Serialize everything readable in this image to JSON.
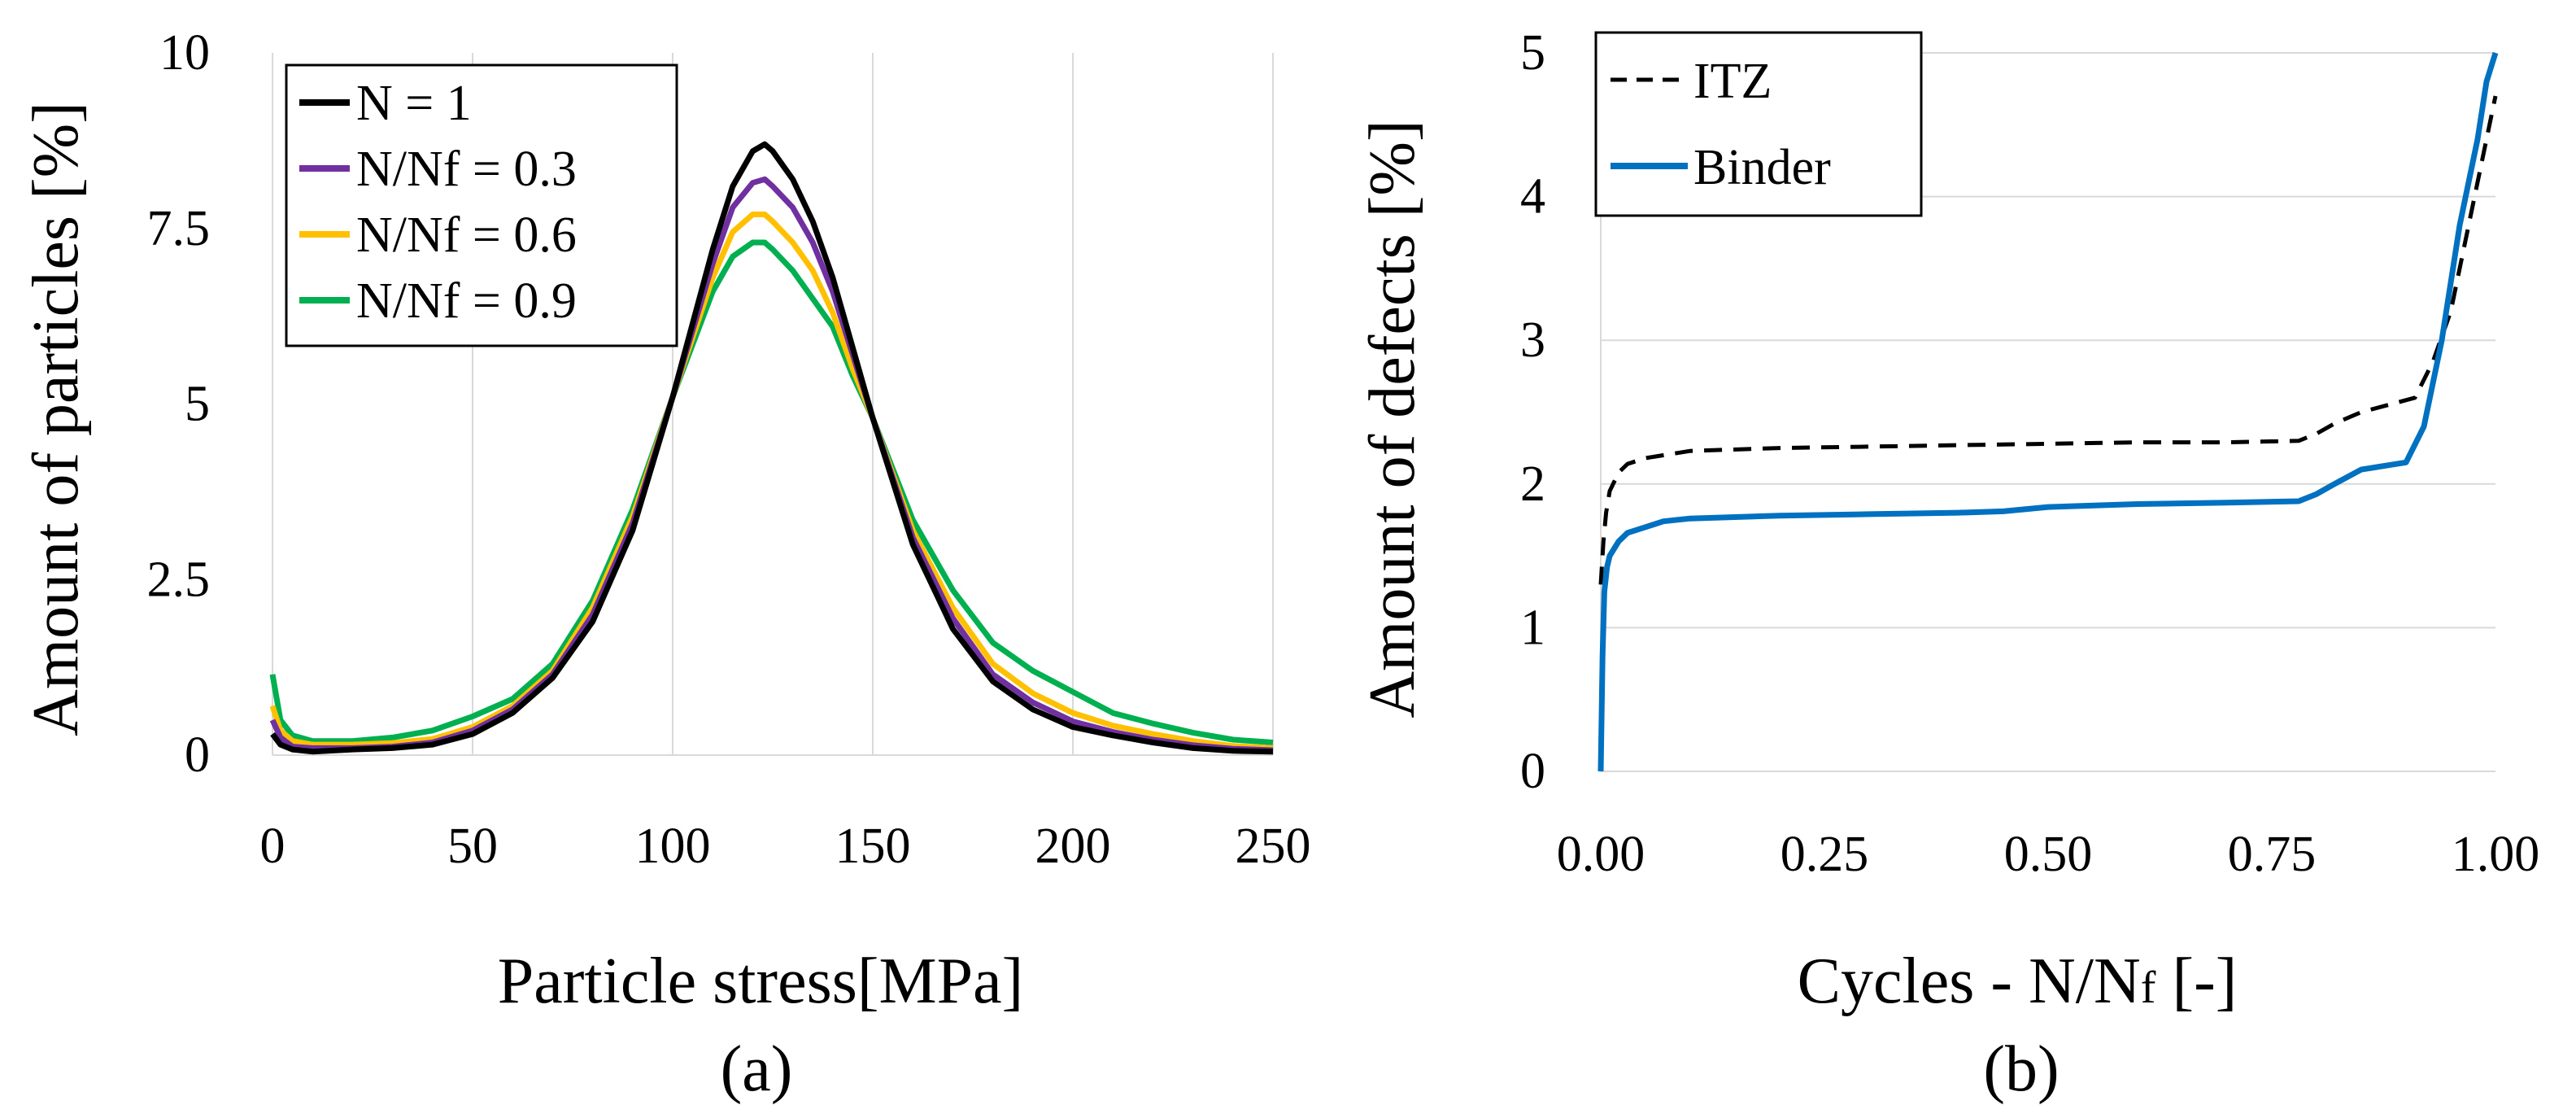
{
  "chart_data": [
    {
      "type": "line",
      "caption": "(a)",
      "xlabel": "Particle stress[MPa]",
      "ylabel": "Amount of particles [%]",
      "xlim": [
        0,
        250
      ],
      "ylim": [
        0,
        10
      ],
      "x_ticks": [
        "0",
        "50",
        "100",
        "150",
        "200",
        "250"
      ],
      "y_ticks": [
        "0",
        "2.5",
        "5",
        "7.5",
        "10"
      ],
      "grid": "vertical",
      "legend": "top-left, boxed",
      "series": [
        {
          "name": "N = 1",
          "color": "#000000",
          "x": [
            0,
            2,
            5,
            10,
            20,
            30,
            40,
            50,
            60,
            70,
            80,
            90,
            100,
            110,
            115,
            120,
            123,
            125,
            130,
            135,
            140,
            145,
            150,
            160,
            170,
            180,
            190,
            200,
            210,
            220,
            230,
            240,
            250
          ],
          "y": [
            0.3,
            0.15,
            0.08,
            0.05,
            0.08,
            0.1,
            0.15,
            0.3,
            0.6,
            1.1,
            1.9,
            3.2,
            5.1,
            7.2,
            8.1,
            8.6,
            8.7,
            8.6,
            8.2,
            7.6,
            6.8,
            5.8,
            4.8,
            3.0,
            1.8,
            1.05,
            0.65,
            0.4,
            0.28,
            0.18,
            0.1,
            0.06,
            0.05
          ]
        },
        {
          "name": "N/Nf = 0.3",
          "color": "#7030A0",
          "x": [
            0,
            2,
            5,
            10,
            20,
            30,
            40,
            50,
            60,
            70,
            80,
            90,
            100,
            110,
            115,
            120,
            123,
            125,
            130,
            135,
            140,
            145,
            150,
            160,
            170,
            180,
            190,
            200,
            210,
            220,
            230,
            240,
            250
          ],
          "y": [
            0.5,
            0.25,
            0.12,
            0.1,
            0.1,
            0.12,
            0.18,
            0.35,
            0.65,
            1.15,
            2.0,
            3.3,
            5.1,
            7.0,
            7.8,
            8.15,
            8.2,
            8.1,
            7.8,
            7.3,
            6.6,
            5.7,
            4.8,
            3.1,
            1.95,
            1.15,
            0.75,
            0.48,
            0.33,
            0.22,
            0.14,
            0.09,
            0.07
          ]
        },
        {
          "name": "N/Nf = 0.6",
          "color": "#FFC000",
          "x": [
            0,
            2,
            5,
            10,
            20,
            30,
            40,
            50,
            60,
            70,
            80,
            90,
            100,
            110,
            115,
            120,
            123,
            125,
            130,
            135,
            140,
            145,
            150,
            160,
            170,
            180,
            190,
            200,
            210,
            220,
            230,
            240,
            250
          ],
          "y": [
            0.7,
            0.35,
            0.2,
            0.15,
            0.15,
            0.17,
            0.23,
            0.4,
            0.7,
            1.2,
            2.1,
            3.4,
            5.1,
            6.8,
            7.45,
            7.7,
            7.7,
            7.6,
            7.3,
            6.9,
            6.3,
            5.5,
            4.8,
            3.2,
            2.1,
            1.3,
            0.88,
            0.6,
            0.42,
            0.3,
            0.2,
            0.13,
            0.1
          ]
        },
        {
          "name": "N/Nf = 0.9",
          "color": "#00B050",
          "x": [
            0,
            2,
            5,
            10,
            20,
            30,
            40,
            50,
            60,
            70,
            80,
            90,
            100,
            110,
            115,
            120,
            123,
            125,
            130,
            135,
            140,
            145,
            150,
            160,
            170,
            180,
            190,
            200,
            210,
            220,
            230,
            240,
            250
          ],
          "y": [
            1.15,
            0.5,
            0.28,
            0.2,
            0.2,
            0.25,
            0.35,
            0.55,
            0.8,
            1.3,
            2.2,
            3.5,
            5.1,
            6.6,
            7.1,
            7.3,
            7.3,
            7.2,
            6.9,
            6.5,
            6.1,
            5.4,
            4.8,
            3.35,
            2.35,
            1.6,
            1.2,
            0.9,
            0.6,
            0.45,
            0.32,
            0.22,
            0.18
          ]
        }
      ]
    },
    {
      "type": "line",
      "caption": "(b)",
      "xlabel_main": "Cycles - N/N",
      "xlabel_sub": "f",
      "xlabel_tail": " [-]",
      "ylabel": "Amount of defects [%]",
      "xlim": [
        0,
        1
      ],
      "ylim": [
        0,
        5
      ],
      "x_ticks": [
        "0.00",
        "0.25",
        "0.50",
        "0.75",
        "1.00"
      ],
      "y_ticks": [
        "0",
        "1",
        "2",
        "3",
        "4",
        "5"
      ],
      "grid": "horizontal",
      "legend": "top-left, boxed",
      "series": [
        {
          "name": "ITZ",
          "color": "#000000",
          "dash": "dashed",
          "x": [
            0,
            0.003,
            0.006,
            0.01,
            0.02,
            0.03,
            0.05,
            0.08,
            0.1,
            0.2,
            0.3,
            0.4,
            0.5,
            0.6,
            0.7,
            0.78,
            0.8,
            0.82,
            0.85,
            0.88,
            0.91,
            0.93,
            0.95,
            0.97,
            0.99,
            1.0
          ],
          "y": [
            1.3,
            1.6,
            1.8,
            1.95,
            2.08,
            2.14,
            2.18,
            2.21,
            2.23,
            2.25,
            2.26,
            2.27,
            2.28,
            2.29,
            2.29,
            2.3,
            2.35,
            2.42,
            2.5,
            2.55,
            2.6,
            2.85,
            3.2,
            3.8,
            4.4,
            4.7
          ]
        },
        {
          "name": "Binder",
          "color": "#0070C0",
          "dash": "solid",
          "x": [
            0,
            0.002,
            0.004,
            0.007,
            0.01,
            0.02,
            0.03,
            0.05,
            0.07,
            0.1,
            0.2,
            0.3,
            0.4,
            0.45,
            0.5,
            0.6,
            0.7,
            0.78,
            0.8,
            0.82,
            0.85,
            0.88,
            0.9,
            0.92,
            0.94,
            0.96,
            0.98,
            0.99,
            1.0
          ],
          "y": [
            0,
            0.8,
            1.25,
            1.42,
            1.5,
            1.6,
            1.66,
            1.7,
            1.74,
            1.76,
            1.78,
            1.79,
            1.8,
            1.81,
            1.84,
            1.86,
            1.87,
            1.88,
            1.93,
            2.0,
            2.1,
            2.13,
            2.15,
            2.4,
            3.0,
            3.8,
            4.4,
            4.8,
            5.0
          ]
        }
      ]
    }
  ]
}
